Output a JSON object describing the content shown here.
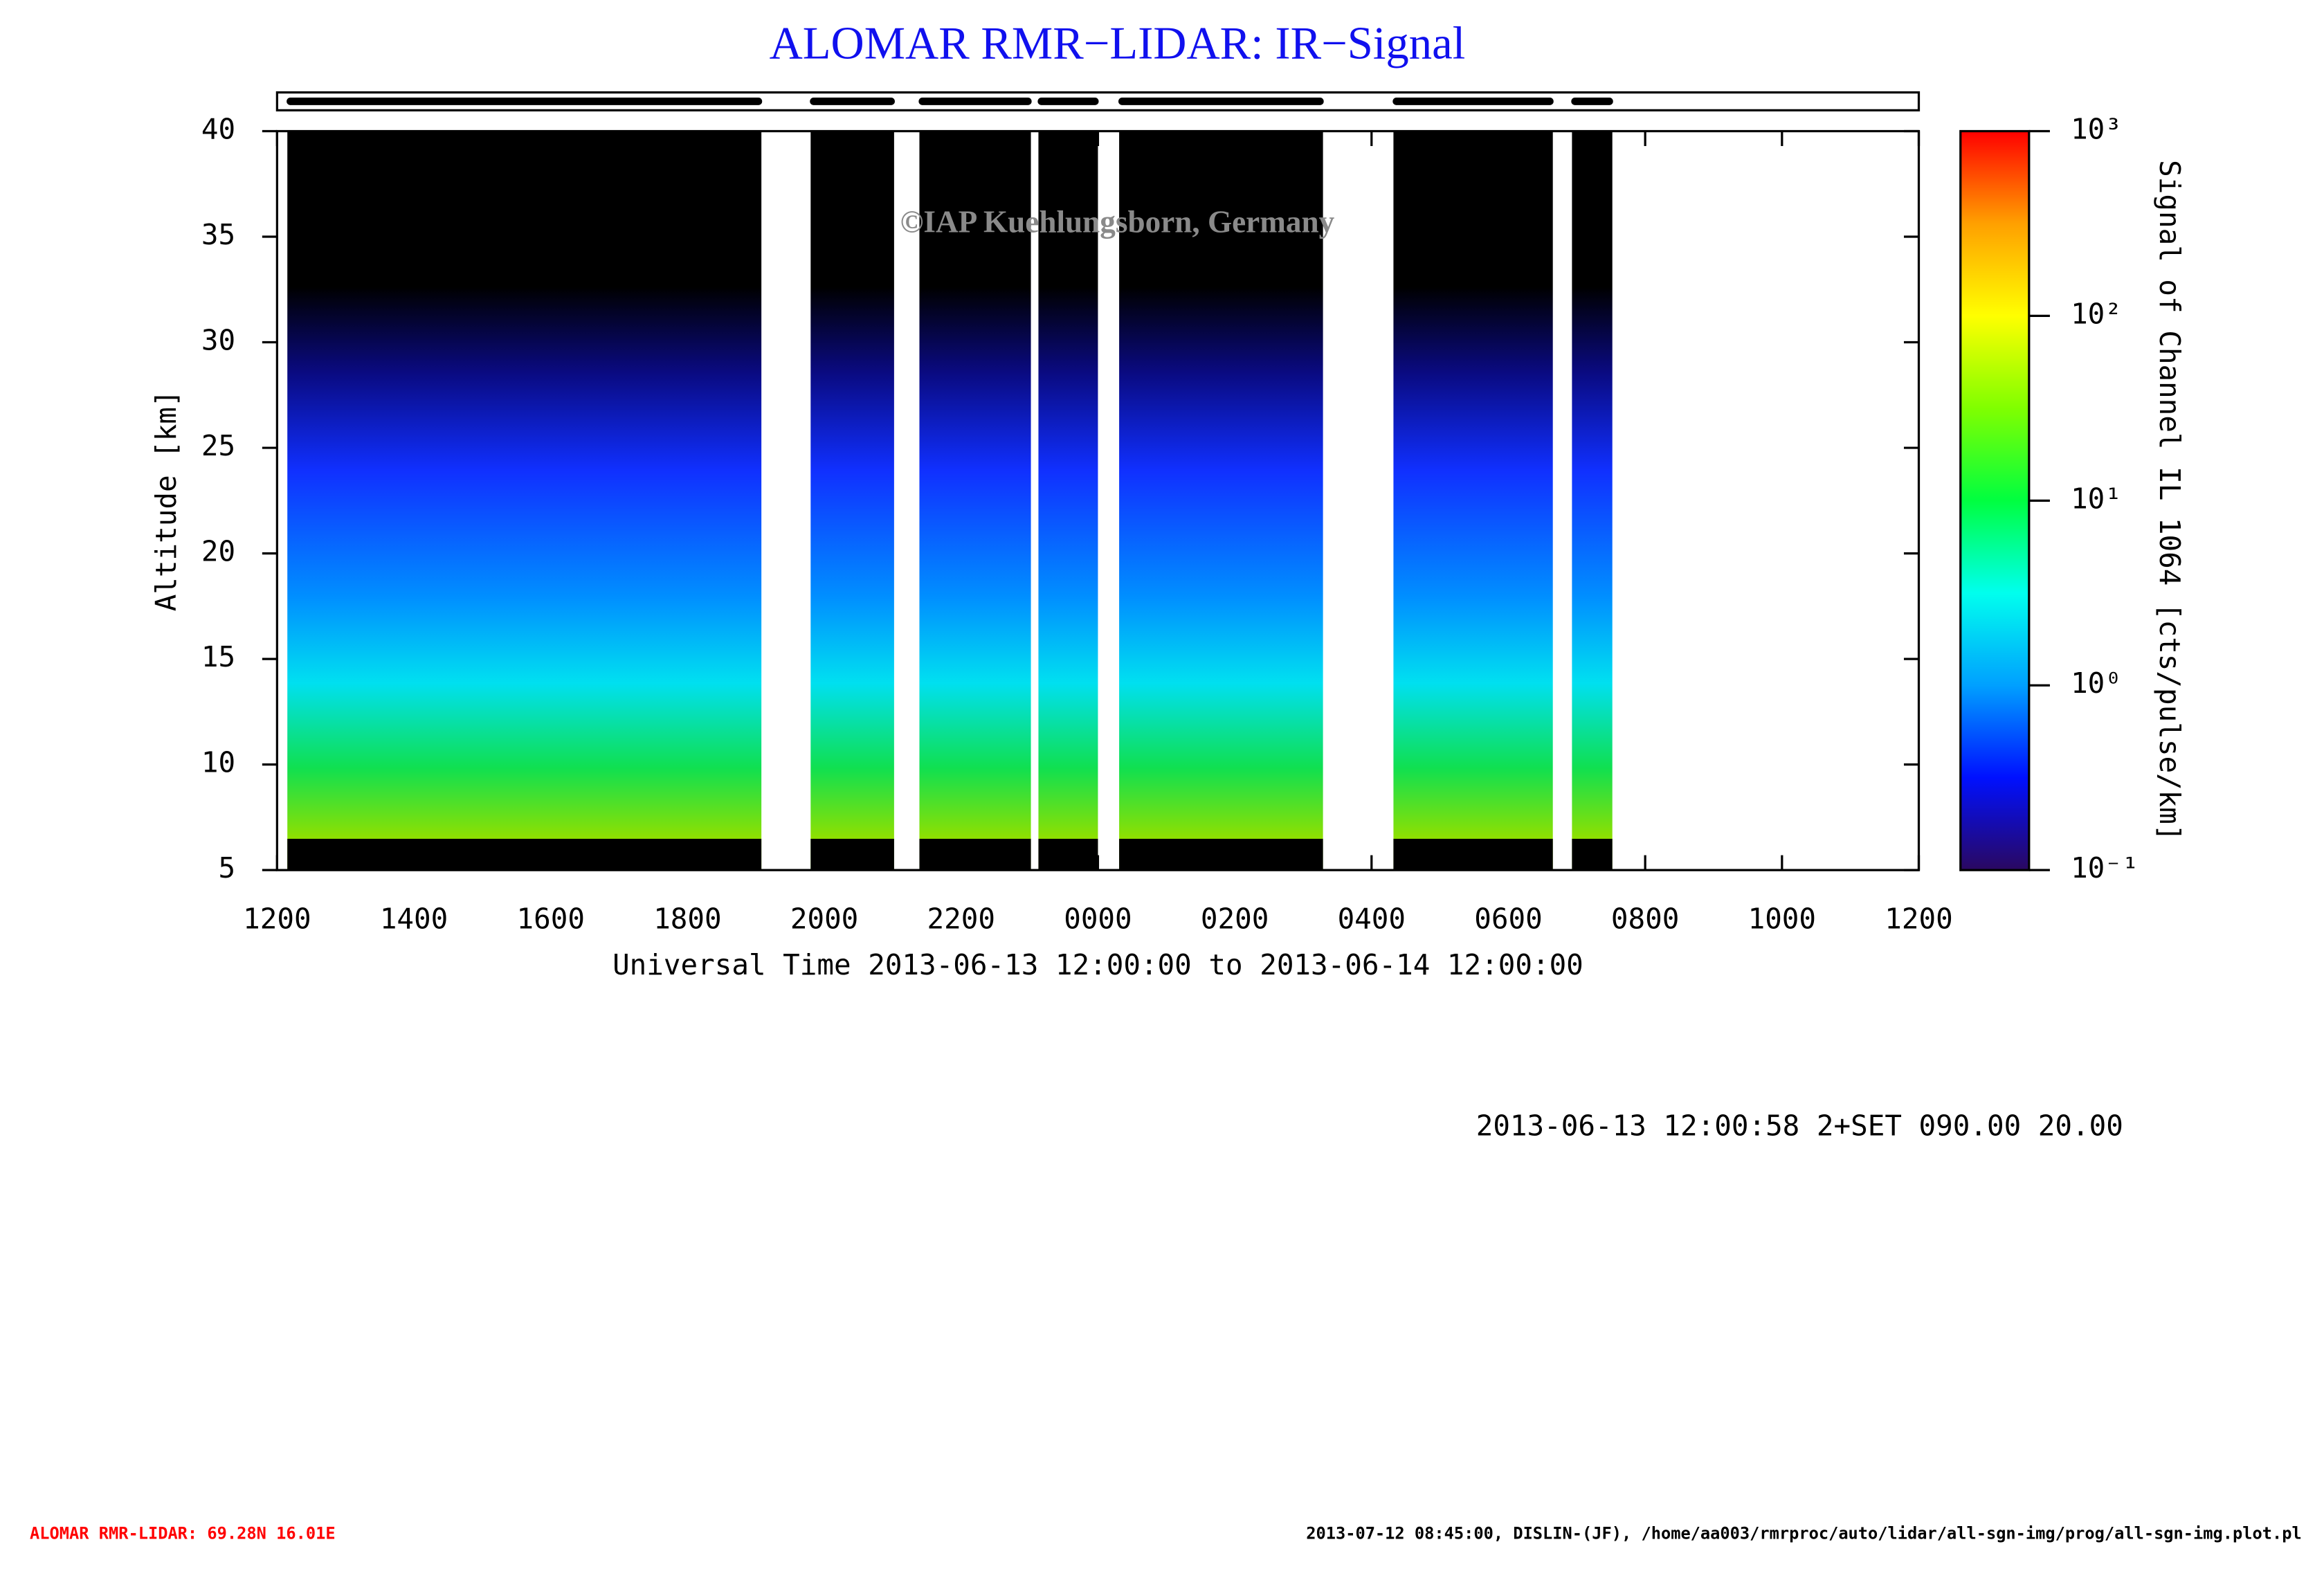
{
  "chart_data": {
    "type": "lidar-periods",
    "title": "ALOMAR RMR−LIDAR: IR−Signal",
    "x_label": "Universal Time 2013-06-13 12:00:00 to 2013-06-14 12:00:00",
    "y_label": "Altitude [km]",
    "colorbar_label": "Signal of Channel IL 1064 [cts/pulse/km]",
    "watermark": "©IAP Kuehlungsborn, Germany",
    "info": "2013-06-13 12:00:58 2+SET 090.00 20.00",
    "footer_left": "ALOMAR RMR-LIDAR: 69.28N 16.01E",
    "footer_right": "2013-07-12 08:45:00, DISLIN-(JF), /home/aa003/rmrproc/auto/lidar/all-sgn-img/prog/all-sgn-img.plot.pl",
    "xlim": [
      12,
      36
    ],
    "xticks": [
      {
        "value": 12,
        "label": "1200"
      },
      {
        "value": 14,
        "label": "1400"
      },
      {
        "value": 16,
        "label": "1600"
      },
      {
        "value": 18,
        "label": "1800"
      },
      {
        "value": 20,
        "label": "2000"
      },
      {
        "value": 22,
        "label": "2200"
      },
      {
        "value": 24,
        "label": "0000"
      },
      {
        "value": 26,
        "label": "0200"
      },
      {
        "value": 28,
        "label": "0400"
      },
      {
        "value": 30,
        "label": "0600"
      },
      {
        "value": 32,
        "label": "0800"
      },
      {
        "value": 34,
        "label": "1000"
      },
      {
        "value": 36,
        "label": "1200"
      }
    ],
    "ylim": [
      5,
      40
    ],
    "yticks": [
      5,
      10,
      15,
      20,
      25,
      30,
      35,
      40
    ],
    "periods": [
      {
        "start": 12.15,
        "end": 19.08
      },
      {
        "start": 19.8,
        "end": 21.02
      },
      {
        "start": 21.39,
        "end": 23.02
      },
      {
        "start": 23.13,
        "end": 24.0
      },
      {
        "start": 24.31,
        "end": 27.29
      },
      {
        "start": 28.32,
        "end": 30.65
      },
      {
        "start": 30.93,
        "end": 31.52
      }
    ],
    "clim": [
      0.1,
      1000
    ],
    "log_colorbar": true,
    "cticks": [
      {
        "value": 0.1,
        "label": "10⁻¹"
      },
      {
        "value": 1,
        "label": "10⁰"
      },
      {
        "value": 10,
        "label": "10¹"
      },
      {
        "value": 100,
        "label": "10²"
      },
      {
        "value": 1000,
        "label": "10³"
      }
    ],
    "colormap": [
      "#2a0860",
      "#0010ff",
      "#00a0ff",
      "#00ffee",
      "#00ff40",
      "#80ff00",
      "#ffff00",
      "#ffa000",
      "#ff0000"
    ]
  }
}
